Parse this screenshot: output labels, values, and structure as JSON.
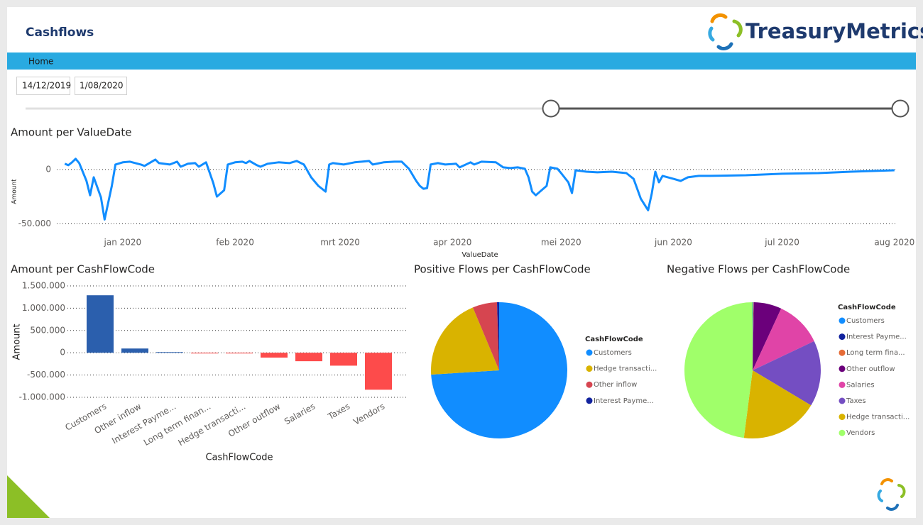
{
  "header": {
    "title": "Cashflows",
    "logo_text": "TreasuryMetrics"
  },
  "nav": {
    "tabs": [
      "Home"
    ]
  },
  "filters": {
    "date_from": "14/12/2019",
    "date_to": "1/08/2020"
  },
  "chart_data": [
    {
      "type": "line",
      "title": "Amount per ValueDate",
      "x_label": "ValueDate",
      "y_label": "Amount",
      "color": "#118dff",
      "grid": true,
      "x": [
        2,
        3,
        4,
        5,
        6,
        8,
        9,
        10,
        12,
        13,
        15,
        16,
        18,
        20,
        23,
        24,
        26,
        27,
        28,
        31,
        33,
        34,
        36,
        38,
        39,
        41,
        43,
        44,
        46,
        47,
        49,
        51,
        52,
        53,
        55,
        56,
        58,
        61,
        64,
        66,
        68,
        70,
        72,
        74,
        75,
        76,
        79,
        82,
        86,
        87,
        90,
        93,
        95,
        97,
        99,
        100,
        101,
        102,
        103,
        105,
        107,
        110,
        111,
        114,
        115,
        117,
        121,
        123,
        125,
        127,
        129,
        130,
        131,
        132,
        135,
        136,
        138,
        139,
        141,
        142,
        143,
        146,
        149,
        153,
        157,
        159,
        161,
        163,
        164,
        165,
        166,
        167,
        170,
        172,
        174,
        177,
        180,
        190,
        200,
        210,
        219,
        231
      ],
      "values": [
        5300,
        4000,
        6600,
        9900,
        5900,
        -10500,
        -23700,
        -7200,
        -25700,
        -46100,
        -15100,
        4600,
        6600,
        7200,
        4600,
        3300,
        7200,
        9200,
        5900,
        4600,
        7200,
        2600,
        5300,
        5900,
        2600,
        6600,
        -12500,
        -25000,
        -19100,
        4600,
        6600,
        7200,
        5900,
        7900,
        4000,
        2600,
        5300,
        6600,
        5900,
        7900,
        4600,
        -7200,
        -15100,
        -20400,
        4600,
        5900,
        4600,
        6600,
        7900,
        4600,
        6600,
        7200,
        7200,
        700,
        -10500,
        -15100,
        -17800,
        -17100,
        4600,
        5900,
        4600,
        5300,
        2000,
        6600,
        4600,
        7200,
        6600,
        2000,
        1300,
        2000,
        700,
        -7200,
        -20400,
        -23700,
        -15100,
        2000,
        700,
        -3300,
        -11800,
        -21700,
        -700,
        -2000,
        -2600,
        -2000,
        -3300,
        -8600,
        -27000,
        -37500,
        -22400,
        -2000,
        -11800,
        -5900,
        -8600,
        -10500,
        -7200,
        -5900,
        -5900,
        -5300,
        -3900,
        -3300,
        -2000,
        -700
      ],
      "xlim": [
        0,
        233
      ],
      "xticks": [
        {
          "value": 18,
          "label": "jan 2020"
        },
        {
          "value": 49,
          "label": "feb 2020"
        },
        {
          "value": 78,
          "label": "mrt 2020"
        },
        {
          "value": 109,
          "label": "apr 2020"
        },
        {
          "value": 139,
          "label": "mei 2020"
        },
        {
          "value": 170,
          "label": "jun 2020"
        },
        {
          "value": 200,
          "label": "jul 2020"
        },
        {
          "value": 231,
          "label": "aug 2020"
        }
      ],
      "ylim": [
        -55000,
        15000
      ],
      "yticks": [
        0,
        {
          "value": -50000,
          "label": "-50.000"
        }
      ]
    },
    {
      "type": "bar",
      "title": "Amount per CashFlowCode",
      "x_label": "CashFlowCode",
      "y_label": "Amount",
      "grid": true,
      "categories": [
        "Customers",
        "Other inflow",
        "Interest Payme...",
        "Long term finan...",
        "Hedge transacti...",
        "Other outflow",
        "Salaries",
        "Taxes",
        "Vendors"
      ],
      "values": [
        1290000,
        95000,
        15000,
        -10000,
        -15000,
        -110000,
        -190000,
        -290000,
        -830000
      ],
      "colors": [
        "#2b5fad",
        "#2b5fad",
        "#2b5fad",
        "#fd4b4b",
        "#fd4b4b",
        "#fd4b4b",
        "#fd4b4b",
        "#fd4b4b",
        "#fd4b4b"
      ],
      "ylim": [
        -1000000,
        1500000
      ],
      "yticks": [
        {
          "value": 1500000,
          "label": "1.500.000"
        },
        {
          "value": 1000000,
          "label": "1.000.000"
        },
        {
          "value": 500000,
          "label": "500.000"
        },
        0,
        {
          "value": -500000,
          "label": "-500.000"
        },
        {
          "value": -1000000,
          "label": "-1.000.000"
        }
      ]
    },
    {
      "type": "pie",
      "title": "Positive Flows per CashFlowCode",
      "legend_title": "CashFlowCode",
      "legend": "right",
      "categories": [
        "Customers",
        "Hedge transacti...",
        "Other inflow",
        "Interest Payme..."
      ],
      "values": [
        74,
        19.7,
        5.8,
        0.5
      ],
      "colors": [
        "#118dff",
        "#d9b300",
        "#d64550",
        "#12239e"
      ]
    },
    {
      "type": "pie",
      "title": "Negative Flows per CashFlowCode",
      "legend_title": "CashFlowCode",
      "legend": "right",
      "categories": [
        "Customers",
        "Interest Payme...",
        "Long term fina...",
        "Other outflow",
        "Salaries",
        "Taxes",
        "Hedge transacti...",
        "Vendors"
      ],
      "values": [
        0.1,
        0.1,
        0.1,
        6.6,
        11.1,
        15.7,
        18.5,
        48.1
      ],
      "colors": [
        "#118dff",
        "#12239e",
        "#e66c37",
        "#6b007b",
        "#e044a7",
        "#744ec2",
        "#d9b300",
        "#a0ff6a"
      ]
    }
  ]
}
